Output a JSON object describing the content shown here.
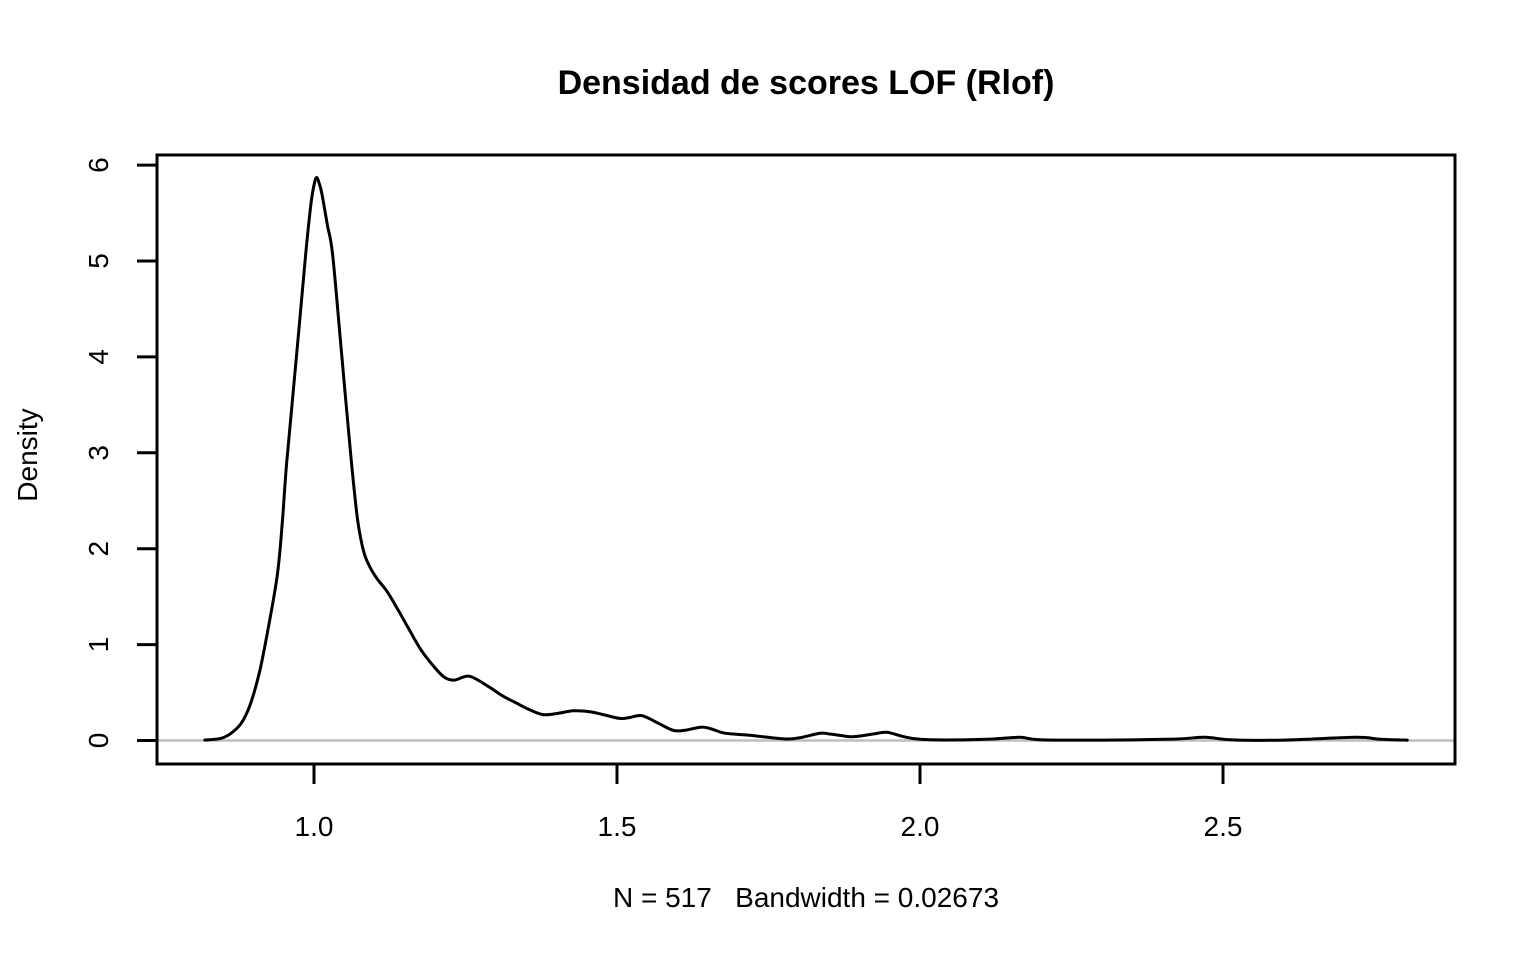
{
  "title": "Densidad de scores LOF (Rlof)",
  "xlabel": "N = 517   Bandwidth = 0.02673",
  "ylabel": "Density",
  "chart_data": {
    "type": "line",
    "subtype": "kernel-density",
    "title": "Densidad de scores LOF (Rlof)",
    "xlabel": "N = 517   Bandwidth = 0.02673",
    "ylabel": "Density",
    "n": 517,
    "bandwidth": 0.02673,
    "grid": false,
    "legend_position": "none",
    "xlim": [
      0.74,
      2.88
    ],
    "ylim": [
      0,
      6
    ],
    "x_ticks": [
      1.0,
      1.5,
      2.0,
      2.5
    ],
    "x_tick_labels": [
      "1.0",
      "1.5",
      "2.0",
      "2.5"
    ],
    "y_ticks": [
      0,
      1,
      2,
      3,
      4,
      5,
      6
    ],
    "y_tick_labels": [
      "0",
      "1",
      "2",
      "3",
      "4",
      "5",
      "6"
    ],
    "colors": {
      "line": "#000000",
      "zero_line": "#bebebe",
      "box": "#000000",
      "text": "#000000",
      "background": "#ffffff"
    },
    "series": [
      {
        "name": "density",
        "points": [
          [
            0.82,
            0.005
          ],
          [
            0.845,
            0.02
          ],
          [
            0.862,
            0.07
          ],
          [
            0.88,
            0.18
          ],
          [
            0.895,
            0.38
          ],
          [
            0.911,
            0.74
          ],
          [
            0.927,
            1.26
          ],
          [
            0.94,
            1.75
          ],
          [
            0.948,
            2.3
          ],
          [
            0.955,
            2.9
          ],
          [
            0.971,
            4.0
          ],
          [
            0.986,
            5.05
          ],
          [
            0.995,
            5.6
          ],
          [
            1.001,
            5.82
          ],
          [
            1.005,
            5.87
          ],
          [
            1.009,
            5.8
          ],
          [
            1.013,
            5.7
          ],
          [
            1.022,
            5.38
          ],
          [
            1.031,
            5.05
          ],
          [
            1.046,
            4.0
          ],
          [
            1.061,
            2.95
          ],
          [
            1.072,
            2.3
          ],
          [
            1.082,
            1.97
          ],
          [
            1.093,
            1.8
          ],
          [
            1.105,
            1.68
          ],
          [
            1.121,
            1.55
          ],
          [
            1.138,
            1.37
          ],
          [
            1.155,
            1.18
          ],
          [
            1.176,
            0.95
          ],
          [
            1.198,
            0.77
          ],
          [
            1.215,
            0.66
          ],
          [
            1.232,
            0.63
          ],
          [
            1.256,
            0.67
          ],
          [
            1.286,
            0.57
          ],
          [
            1.31,
            0.47
          ],
          [
            1.334,
            0.39
          ],
          [
            1.356,
            0.32
          ],
          [
            1.378,
            0.27
          ],
          [
            1.4,
            0.28
          ],
          [
            1.428,
            0.31
          ],
          [
            1.455,
            0.3
          ],
          [
            1.477,
            0.27
          ],
          [
            1.505,
            0.23
          ],
          [
            1.521,
            0.24
          ],
          [
            1.541,
            0.26
          ],
          [
            1.565,
            0.19
          ],
          [
            1.587,
            0.12
          ],
          [
            1.598,
            0.1
          ],
          [
            1.615,
            0.11
          ],
          [
            1.64,
            0.14
          ],
          [
            1.656,
            0.12
          ],
          [
            1.675,
            0.08
          ],
          [
            1.697,
            0.065
          ],
          [
            1.719,
            0.054
          ],
          [
            1.741,
            0.04
          ],
          [
            1.78,
            0.016
          ],
          [
            1.802,
            0.029
          ],
          [
            1.835,
            0.075
          ],
          [
            1.851,
            0.068
          ],
          [
            1.884,
            0.04
          ],
          [
            1.901,
            0.047
          ],
          [
            1.923,
            0.068
          ],
          [
            1.945,
            0.086
          ],
          [
            1.97,
            0.045
          ],
          [
            2.0,
            0.012
          ],
          [
            2.06,
            0.006
          ],
          [
            2.12,
            0.016
          ],
          [
            2.165,
            0.033
          ],
          [
            2.198,
            0.008
          ],
          [
            2.3,
            0.004
          ],
          [
            2.42,
            0.015
          ],
          [
            2.47,
            0.033
          ],
          [
            2.516,
            0.006
          ],
          [
            2.6,
            0.004
          ],
          [
            2.719,
            0.033
          ],
          [
            2.76,
            0.012
          ],
          [
            2.804,
            0.004
          ]
        ]
      }
    ]
  }
}
